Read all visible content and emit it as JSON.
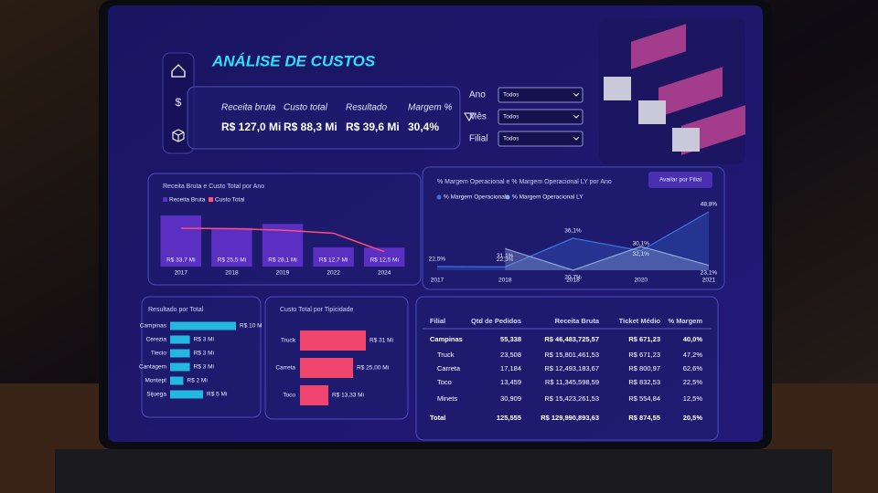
{
  "header": {
    "title": "ANÁLISE DE CUSTOS"
  },
  "kpis": [
    {
      "label": "Receita bruta",
      "value": "R$ 127,0 Mi"
    },
    {
      "label": "Custo total",
      "value": "R$ 88,3 Mi"
    },
    {
      "label": "Resultado",
      "value": "R$ 39,6 Mi"
    },
    {
      "label": "Margem %",
      "value": "30,4%"
    }
  ],
  "filters": [
    {
      "label": "Ano",
      "value": "Todos"
    },
    {
      "label": "Mês",
      "value": "Todos"
    },
    {
      "label": "Filial",
      "value": "Todos"
    }
  ],
  "chart_data": [
    {
      "type": "bar",
      "title": "Receita Bruta e Custo Total por Ano",
      "categories": [
        "2017",
        "2018",
        "2019",
        "2022",
        "2024"
      ],
      "series": [
        {
          "name": "Receita Bruta",
          "color": "#5a2fc2",
          "values": [
            33.7,
            25.5,
            28.1,
            12.7,
            12.5
          ],
          "value_labels": [
            "R$ 33,7 Mi",
            "R$ 25,5 Mi",
            "R$ 28,1 Mi",
            "R$ 12,7 Mi",
            "R$ 12,5 Mi"
          ]
        },
        {
          "name": "Custo Total",
          "type": "line",
          "color": "#ff4f7a",
          "values": [
            25.3,
            25.0,
            24.0,
            22.0,
            9.8
          ]
        }
      ]
    },
    {
      "type": "line",
      "title": "% Margem Operacional e % Margem Operacional LY por Ano",
      "button": "Availar por Filial",
      "categories": [
        "2017",
        "2018",
        "2018",
        "2020",
        "2021"
      ],
      "series": [
        {
          "name": "% Margem Operacional",
          "color": "#3d72e0",
          "values": [
            22.5,
            22.3,
            36.1,
            30.1,
            48.8
          ],
          "value_labels": [
            "22,5%",
            "22,3%",
            "36,1%",
            "30,1%",
            "48,8%"
          ]
        },
        {
          "name": "% Margem Operacional LY",
          "color": "#8fa6d8",
          "values": [
            null,
            31.1,
            20.7,
            32.1,
            23.1
          ],
          "value_labels": [
            null,
            "31,1%",
            "20,7%",
            "32,1%",
            "23,1%"
          ]
        }
      ]
    },
    {
      "type": "barh",
      "title": "Resultado por Total",
      "color": "#22b8e0",
      "categories": [
        "Campinas",
        "Cerezia",
        "Tiecio",
        "Cantagem",
        "Montept",
        "Sijuega"
      ],
      "values": [
        10,
        3,
        3,
        3,
        2,
        5
      ],
      "value_labels": [
        "R$ 10 M",
        "R$ 3 Mi",
        "R$ 3 Mi",
        "R$ 3 Mi",
        "R$ 2 Mi",
        "R$ 5 Mi"
      ]
    },
    {
      "type": "barh",
      "title": "Custo Total por Tipicidade",
      "color": "#f0456e",
      "categories": [
        "Truck",
        "Carreta",
        "Toco"
      ],
      "values": [
        31,
        25,
        13.33
      ],
      "value_labels": [
        "R$ 31 Mi",
        "R$ 25,00 Mi",
        "R$ 13,33 Mi"
      ]
    }
  ],
  "table": {
    "columns": [
      "Filial",
      "Qtd de Pedidos",
      "Receita Bruta",
      "Ticket Médio",
      "% Margem"
    ],
    "rows": [
      [
        "Campinas",
        "55,338",
        "R$ 46,483,725,57",
        "R$ 671,23",
        "40,0%"
      ],
      [
        "Truck",
        "23,508",
        "R$ 15,801,461,53",
        "R$ 671,23",
        "47,2%"
      ],
      [
        "Carreta",
        "17,184",
        "R$ 12,493,183,67",
        "R$ 800,97",
        "62,6%"
      ],
      [
        "Toco",
        "13,459",
        "R$ 11,345,598,59",
        "R$ 832,53",
        "22,5%"
      ],
      [
        "Minets",
        "30,909",
        "R$ 15,423,261,53",
        "R$ 554,84",
        "12,5%"
      ],
      [
        "Total",
        "125,555",
        "R$ 129,990,893,63",
        "R$ 874,55",
        "20,5%"
      ]
    ]
  }
}
